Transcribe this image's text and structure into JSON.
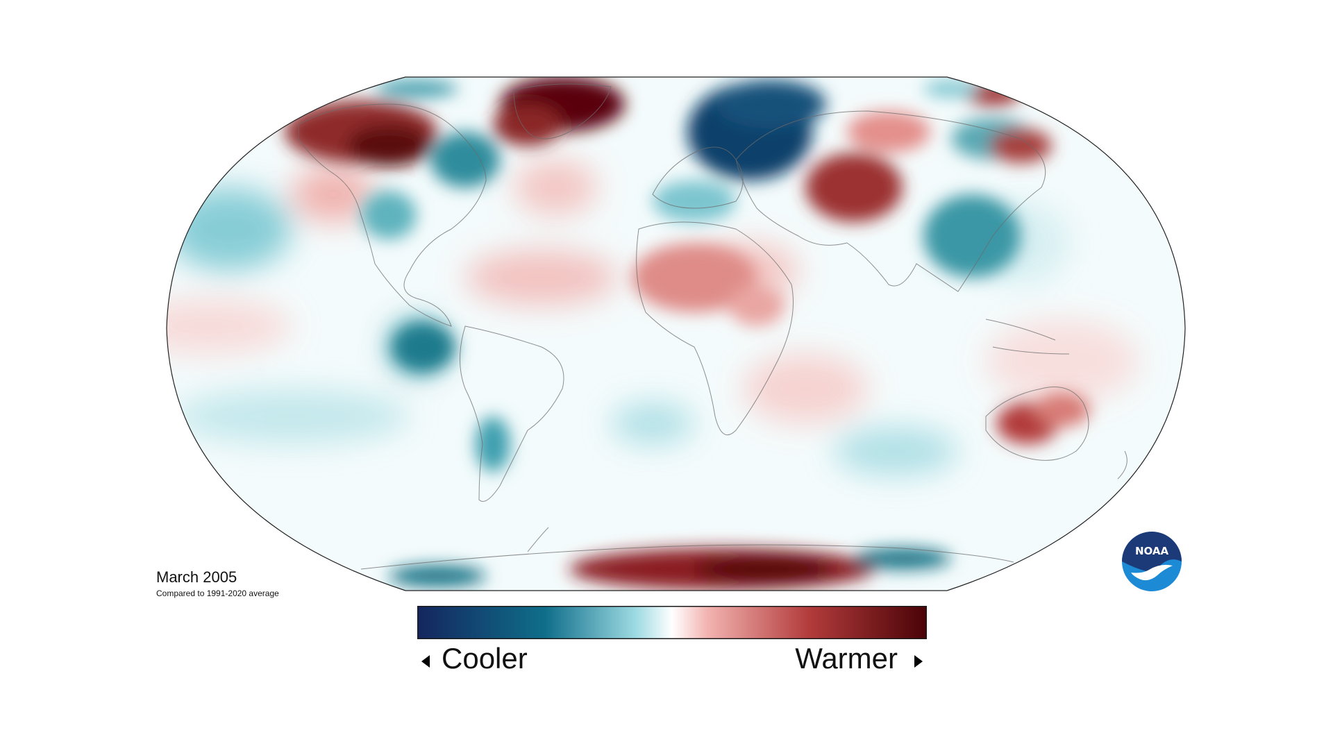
{
  "map": {
    "projection": "Robinson",
    "caption_title": "March 2005",
    "caption_subtitle": "Compared to 1991-2020 average"
  },
  "legend": {
    "low_label": "Cooler",
    "high_label": "Warmer",
    "colors": [
      "#14265e",
      "#0f6e8a",
      "#9fdbe3",
      "#ffffff",
      "#f2b3b0",
      "#b23b3b",
      "#4a0307"
    ]
  },
  "logo": {
    "text": "NOAA",
    "colors": {
      "dark": "#1d3a78",
      "light": "#1d8ad6"
    }
  },
  "anomalies": {
    "warm_regions": [
      "Alaska & NW Canada",
      "Greenland",
      "Central Asia",
      "Sahara & West Africa",
      "Australia",
      "Antarctic Peninsula & Weddell Sea",
      "Central Pacific"
    ],
    "cool_regions": [
      "Northern Europe & Scandinavia",
      "Eastern Canada",
      "China",
      "Eastern Pacific",
      "Ross Sea"
    ]
  }
}
